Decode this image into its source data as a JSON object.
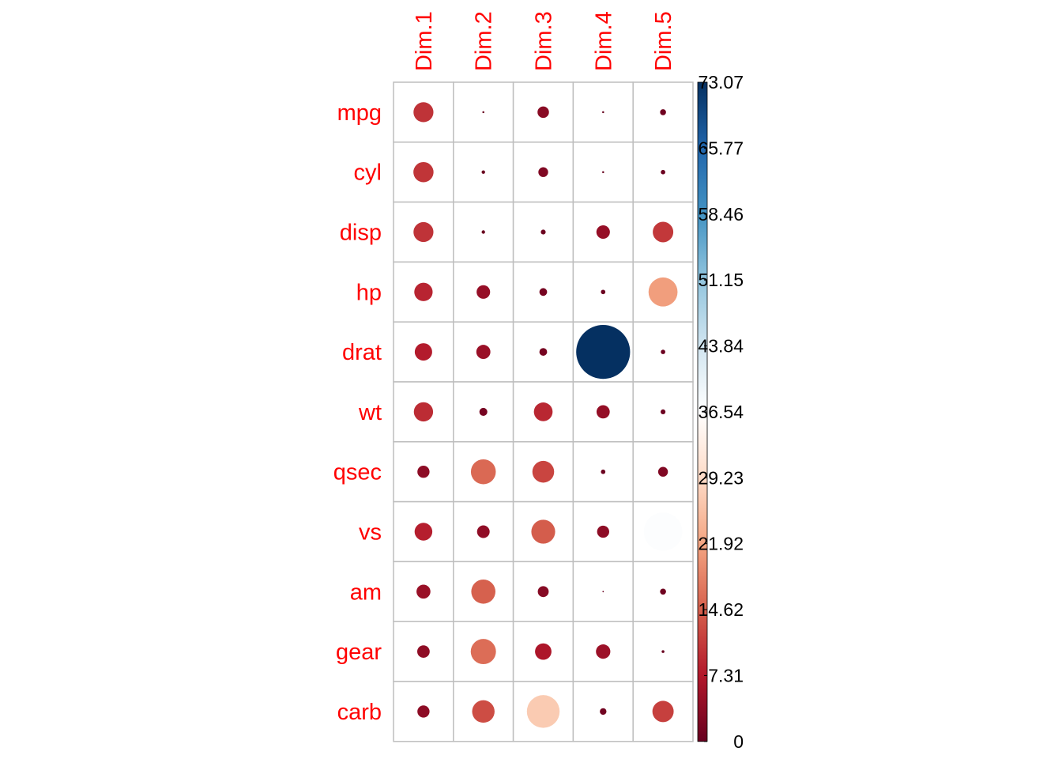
{
  "chart_data": {
    "type": "heatmap",
    "title": "",
    "columns": [
      "Dim.1",
      "Dim.2",
      "Dim.3",
      "Dim.4",
      "Dim.5"
    ],
    "rows": [
      "mpg",
      "cyl",
      "disp",
      "hp",
      "drat",
      "wt",
      "qsec",
      "vs",
      "am",
      "gear",
      "carb"
    ],
    "values": [
      [
        10.0,
        0.1,
        3.3,
        0.1,
        0.9
      ],
      [
        10.2,
        0.3,
        2.4,
        0.1,
        0.5
      ],
      [
        10.0,
        0.3,
        0.6,
        4.6,
        10.6
      ],
      [
        8.5,
        4.6,
        1.5,
        0.5,
        21.2
      ],
      [
        7.6,
        5.0,
        1.5,
        73.07,
        0.5
      ],
      [
        9.3,
        1.6,
        8.8,
        4.4,
        0.6
      ],
      [
        3.7,
        15.6,
        11.9,
        0.5,
        2.4
      ],
      [
        7.9,
        4.0,
        14.3,
        3.7,
        37.0
      ],
      [
        4.9,
        14.7,
        3.0,
        0.05,
        0.9
      ],
      [
        3.9,
        16.0,
        6.8,
        5.2,
        0.2
      ],
      [
        3.7,
        12.7,
        27.0,
        1.1,
        11.4
      ]
    ],
    "value_range": [
      0,
      73.07
    ],
    "colorbar_ticks": [
      "73.07",
      "65.77",
      "58.46",
      "51.15",
      "43.84",
      "36.54",
      "29.23",
      "21.92",
      "14.62",
      "7.31",
      "0"
    ],
    "legend_position": "right",
    "colors": {
      "label": "#ff0000",
      "grid": "#bebebe",
      "scale": [
        "#67001f",
        "#b2182b",
        "#d6604d",
        "#f4a582",
        "#fddbc7",
        "#ffffff",
        "#d1e5f0",
        "#92c5de",
        "#4393c3",
        "#2166ac",
        "#053061"
      ]
    }
  }
}
